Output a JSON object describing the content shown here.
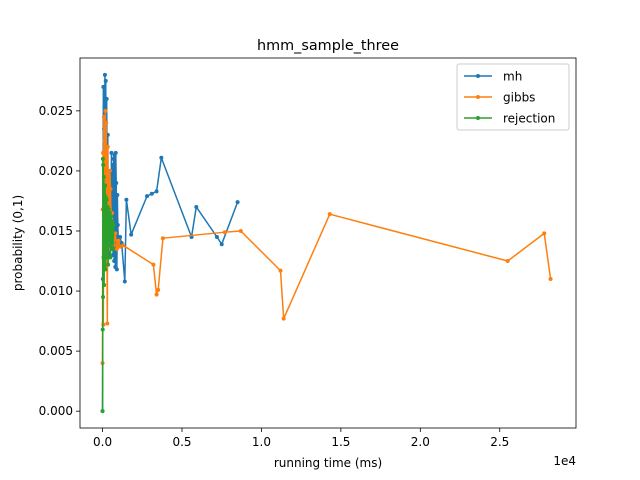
{
  "chart_data": {
    "type": "line",
    "title": "hmm_sample_three",
    "xlabel": "running time (ms)",
    "ylabel": "probability (0,1)",
    "x_offset_label": "1e4",
    "xlim": [
      -1420,
      29800
    ],
    "ylim": [
      -0.0014,
      0.0294
    ],
    "x_ticks": [
      0,
      5000,
      10000,
      15000,
      20000,
      25000
    ],
    "x_tick_labels": [
      "0.0",
      "0.5",
      "1.0",
      "1.5",
      "2.0",
      "2.5"
    ],
    "y_ticks": [
      0.0,
      0.005,
      0.01,
      0.015,
      0.02,
      0.025
    ],
    "y_tick_labels": [
      "0.000",
      "0.005",
      "0.010",
      "0.015",
      "0.020",
      "0.025"
    ],
    "legend_position": "top-right",
    "series": [
      {
        "name": "mh",
        "color": "#1f77b4",
        "points": [
          [
            0,
            0.0
          ],
          [
            20,
            0.011
          ],
          [
            50,
            0.027
          ],
          [
            80,
            0.0158
          ],
          [
            100,
            0.0235
          ],
          [
            120,
            0.012
          ],
          [
            150,
            0.028
          ],
          [
            170,
            0.0165
          ],
          [
            200,
            0.0275
          ],
          [
            230,
            0.014
          ],
          [
            260,
            0.026
          ],
          [
            300,
            0.0145
          ],
          [
            330,
            0.023
          ],
          [
            360,
            0.0132
          ],
          [
            400,
            0.019
          ],
          [
            430,
            0.0128
          ],
          [
            460,
            0.02
          ],
          [
            500,
            0.0195
          ],
          [
            530,
            0.0135
          ],
          [
            560,
            0.0215
          ],
          [
            600,
            0.0138
          ],
          [
            630,
            0.0205
          ],
          [
            660,
            0.013
          ],
          [
            700,
            0.021
          ],
          [
            730,
            0.0125
          ],
          [
            760,
            0.0213
          ],
          [
            800,
            0.012
          ],
          [
            830,
            0.0215
          ],
          [
            860,
            0.019
          ],
          [
            900,
            0.0118
          ],
          [
            930,
            0.018
          ],
          [
            960,
            0.0155
          ],
          [
            1000,
            0.0138
          ],
          [
            1100,
            0.0145
          ],
          [
            1200,
            0.014
          ],
          [
            1400,
            0.0108
          ],
          [
            1500,
            0.0176
          ],
          [
            1800,
            0.0147
          ],
          [
            2800,
            0.0179
          ],
          [
            3100,
            0.0181
          ],
          [
            3400,
            0.0183
          ],
          [
            3700,
            0.0211
          ],
          [
            5600,
            0.0145
          ],
          [
            5900,
            0.017
          ],
          [
            7200,
            0.0145
          ],
          [
            7500,
            0.0139
          ],
          [
            8500,
            0.0174
          ]
        ]
      },
      {
        "name": "gibbs",
        "color": "#ff7f0e",
        "points": [
          [
            0,
            0.004
          ],
          [
            10,
            0.0168
          ],
          [
            30,
            0.0215
          ],
          [
            50,
            0.0072
          ],
          [
            80,
            0.0245
          ],
          [
            100,
            0.0155
          ],
          [
            120,
            0.0225
          ],
          [
            150,
            0.0135
          ],
          [
            180,
            0.025
          ],
          [
            200,
            0.0118
          ],
          [
            230,
            0.024
          ],
          [
            260,
            0.016
          ],
          [
            300,
            0.0073
          ],
          [
            330,
            0.022
          ],
          [
            360,
            0.015
          ],
          [
            400,
            0.0195
          ],
          [
            430,
            0.0135
          ],
          [
            460,
            0.02
          ],
          [
            500,
            0.0185
          ],
          [
            560,
            0.0145
          ],
          [
            600,
            0.0165
          ],
          [
            700,
            0.0138
          ],
          [
            800,
            0.0148
          ],
          [
            900,
            0.0135
          ],
          [
            1000,
            0.0142
          ],
          [
            1100,
            0.0137
          ],
          [
            1300,
            0.0138
          ],
          [
            3200,
            0.0122
          ],
          [
            3400,
            0.0097
          ],
          [
            3500,
            0.0101
          ],
          [
            3800,
            0.0144
          ],
          [
            7700,
            0.0149
          ],
          [
            8700,
            0.015
          ],
          [
            11200,
            0.0117
          ],
          [
            11400,
            0.0077
          ],
          [
            14300,
            0.0164
          ],
          [
            25500,
            0.0125
          ],
          [
            27800,
            0.0148
          ],
          [
            28200,
            0.011
          ]
        ]
      },
      {
        "name": "rejection",
        "color": "#2ca02c",
        "points": [
          [
            0,
            0.0
          ],
          [
            10,
            0.0068
          ],
          [
            20,
            0.021
          ],
          [
            30,
            0.0095
          ],
          [
            40,
            0.0205
          ],
          [
            60,
            0.0128
          ],
          [
            80,
            0.0195
          ],
          [
            100,
            0.0105
          ],
          [
            120,
            0.018
          ],
          [
            140,
            0.0135
          ],
          [
            160,
            0.0188
          ],
          [
            180,
            0.0118
          ],
          [
            200,
            0.0178
          ],
          [
            230,
            0.0128
          ],
          [
            260,
            0.0176
          ],
          [
            290,
            0.0132
          ],
          [
            320,
            0.017
          ],
          [
            350,
            0.0122
          ],
          [
            380,
            0.0168
          ],
          [
            420,
            0.0138
          ],
          [
            460,
            0.0165
          ],
          [
            500,
            0.0128
          ],
          [
            540,
            0.0162
          ],
          [
            580,
            0.0142
          ],
          [
            620,
            0.0158
          ],
          [
            660,
            0.0135
          ],
          [
            700,
            0.0155
          ]
        ]
      }
    ]
  }
}
